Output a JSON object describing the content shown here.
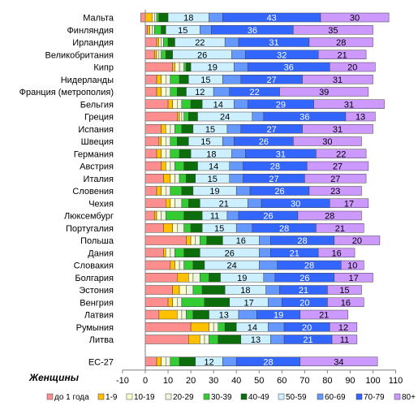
{
  "chart_data": {
    "type": "bar",
    "stacked": true,
    "orientation": "horizontal",
    "title": "",
    "xlabel": "Женщины",
    "ylabel": "",
    "xlim": [
      -10,
      110
    ],
    "xticks": [
      -10,
      0,
      10,
      20,
      30,
      40,
      50,
      60,
      70,
      80,
      90,
      100,
      110
    ],
    "grid": false,
    "legend_position": "bottom",
    "series_names": [
      "до 1 года",
      "1-9",
      "10-19",
      "20-29",
      "30-39",
      "40-49",
      "50-59",
      "60-69",
      "70-79",
      "80+"
    ],
    "colors": [
      "#ff8f8f",
      "#ffc000",
      "#ffffcc",
      "#ebf5e0",
      "#33cc33",
      "#0b6e0b",
      "#ccf0ff",
      "#6699ff",
      "#3366ff",
      "#cc99ff"
    ],
    "rows": [
      {
        "label": "Мальта",
        "values": [
          -2,
          3,
          1,
          1,
          1,
          4,
          18,
          6,
          43,
          30
        ],
        "labels": [
          "",
          "",
          "",
          "",
          "",
          "",
          "18",
          "",
          "43",
          "30"
        ]
      },
      {
        "label": "Финляндия",
        "values": [
          1,
          1,
          1,
          1,
          3,
          2,
          15,
          5,
          36,
          35
        ],
        "labels": [
          "",
          "",
          "",
          "",
          "",
          "",
          "15",
          "",
          "36",
          "35"
        ]
      },
      {
        "label": "Ирландия",
        "values": [
          5,
          1,
          1,
          1,
          2,
          3,
          22,
          6,
          31,
          28
        ],
        "labels": [
          "",
          "",
          "",
          "",
          "",
          "",
          "22",
          "",
          "31",
          "28"
        ]
      },
      {
        "label": "Великобритания",
        "values": [
          4,
          1,
          1,
          1,
          2,
          3,
          26,
          6,
          32,
          21
        ],
        "labels": [
          "",
          "",
          "",
          "",
          "",
          "",
          "26",
          "",
          "32",
          "21"
        ]
      },
      {
        "label": "Кипр",
        "values": [
          12,
          1,
          2,
          2,
          1,
          2,
          19,
          6,
          36,
          20
        ],
        "labels": [
          "",
          "",
          "",
          "",
          "",
          "",
          "19",
          "",
          "36",
          "20"
        ]
      },
      {
        "label": "Нидерланды",
        "values": [
          5,
          2,
          2,
          2,
          4,
          4,
          15,
          8,
          27,
          31
        ],
        "labels": [
          "",
          "",
          "",
          "",
          "",
          "",
          "15",
          "",
          "27",
          "31"
        ]
      },
      {
        "label": "Франция (метрополия)",
        "values": [
          5,
          2,
          2,
          2,
          3,
          4,
          12,
          7,
          22,
          39
        ],
        "labels": [
          "",
          "",
          "",
          "",
          "",
          "",
          "12",
          "",
          "22",
          "39"
        ]
      },
      {
        "label": "Бельгия",
        "values": [
          10,
          2,
          2,
          2,
          4,
          5,
          14,
          6,
          29,
          31
        ],
        "labels": [
          "",
          "",
          "",
          "",
          "",
          "",
          "14",
          "",
          "29",
          "31"
        ]
      },
      {
        "label": "Греция",
        "values": [
          14,
          1,
          1,
          1,
          2,
          4,
          24,
          5,
          36,
          13
        ],
        "labels": [
          "",
          "",
          "",
          "",
          "",
          "",
          "24",
          "",
          "36",
          "13"
        ]
      },
      {
        "label": "Испания",
        "values": [
          7,
          2,
          2,
          2,
          3,
          5,
          15,
          6,
          27,
          31
        ],
        "labels": [
          "",
          "",
          "",
          "",
          "",
          "",
          "15",
          "",
          "27",
          "31"
        ]
      },
      {
        "label": "Швеция",
        "values": [
          6,
          1,
          2,
          2,
          3,
          5,
          15,
          5,
          26,
          30
        ],
        "labels": [
          "",
          "",
          "",
          "",
          "",
          "",
          "15",
          "",
          "26",
          "30"
        ]
      },
      {
        "label": "Германия",
        "values": [
          5,
          2,
          2,
          2,
          4,
          5,
          18,
          6,
          31,
          22
        ],
        "labels": [
          "",
          "",
          "",
          "",
          "",
          "",
          "18",
          "",
          "31",
          "22"
        ]
      },
      {
        "label": "Австрия",
        "values": [
          7,
          2,
          2,
          2,
          4,
          6,
          14,
          6,
          28,
          27
        ],
        "labels": [
          "",
          "",
          "",
          "",
          "",
          "",
          "14",
          "",
          "28",
          "27"
        ]
      },
      {
        "label": "Италия",
        "values": [
          8,
          3,
          2,
          2,
          3,
          4,
          15,
          6,
          27,
          27
        ],
        "labels": [
          "",
          "",
          "",
          "",
          "",
          "",
          "15",
          "",
          "27",
          "27"
        ]
      },
      {
        "label": "Словения",
        "values": [
          5,
          2,
          2,
          2,
          5,
          5,
          19,
          6,
          26,
          23
        ],
        "labels": [
          "",
          "",
          "",
          "",
          "",
          "",
          "19",
          "",
          "26",
          "23"
        ]
      },
      {
        "label": "Чехия",
        "values": [
          9,
          2,
          2,
          3,
          3,
          5,
          21,
          6,
          30,
          17
        ],
        "labels": [
          "",
          "",
          "",
          "",
          "",
          "",
          "21",
          "",
          "30",
          "17"
        ]
      },
      {
        "label": "Люксембург",
        "values": [
          4,
          1,
          2,
          2,
          8,
          8,
          11,
          5,
          26,
          28
        ],
        "labels": [
          "",
          "",
          "",
          "",
          "",
          "",
          "11",
          "",
          "26",
          "28"
        ]
      },
      {
        "label": "Португалия",
        "values": [
          8,
          4,
          2,
          3,
          3,
          5,
          15,
          7,
          28,
          21
        ],
        "labels": [
          "",
          "",
          "",
          "",
          "",
          "",
          "15",
          "",
          "28",
          "21"
        ]
      },
      {
        "label": "Польша",
        "values": [
          18,
          2,
          2,
          2,
          3,
          7,
          16,
          5,
          28,
          20
        ],
        "labels": [
          "",
          "",
          "",
          "",
          "",
          "",
          "16",
          "",
          "28",
          "20"
        ]
      },
      {
        "label": "Дания",
        "values": [
          8,
          1,
          2,
          2,
          4,
          7,
          26,
          5,
          21,
          16
        ],
        "labels": [
          "",
          "",
          "",
          "",
          "",
          "",
          "26",
          "",
          "21",
          "16"
        ]
      },
      {
        "label": "Словакия",
        "values": [
          11,
          2,
          2,
          2,
          4,
          5,
          24,
          8,
          28,
          10
        ],
        "labels": [
          "",
          "",
          "",
          "",
          "",
          "",
          "24",
          "",
          "28",
          "10"
        ]
      },
      {
        "label": "Болгария",
        "values": [
          14,
          5,
          2,
          3,
          4,
          5,
          19,
          5,
          26,
          17
        ],
        "labels": [
          "",
          "",
          "",
          "",
          "",
          "",
          "19",
          "",
          "26",
          "17"
        ]
      },
      {
        "label": "Эстония",
        "values": [
          12,
          3,
          3,
          3,
          4,
          10,
          18,
          6,
          21,
          15
        ],
        "labels": [
          "",
          "",
          "",
          "",
          "",
          "",
          "18",
          "",
          "21",
          "15"
        ]
      },
      {
        "label": "Венгрия",
        "values": [
          10,
          2,
          2,
          2,
          10,
          11,
          17,
          6,
          20,
          16
        ],
        "labels": [
          "",
          "",
          "",
          "",
          "",
          "",
          "17",
          "",
          "20",
          "16"
        ]
      },
      {
        "label": "Латвия",
        "values": [
          6,
          8,
          2,
          2,
          3,
          7,
          13,
          8,
          19,
          21
        ],
        "labels": [
          "",
          "",
          "",
          "",
          "",
          "",
          "13",
          "",
          "19",
          "21"
        ]
      },
      {
        "label": "Румыния",
        "values": [
          20,
          8,
          2,
          2,
          3,
          5,
          14,
          7,
          20,
          12
        ],
        "labels": [
          "",
          "",
          "",
          "",
          "",
          "",
          "14",
          "",
          "20",
          "12"
        ]
      },
      {
        "label": "Литва",
        "values": [
          19,
          5,
          2,
          2,
          4,
          10,
          13,
          6,
          21,
          11
        ],
        "labels": [
          "",
          "",
          "",
          "",
          "",
          "",
          "13",
          "",
          "21",
          "11"
        ]
      },
      {
        "label": "ЕС-27",
        "values": [
          5,
          2,
          2,
          2,
          4,
          7,
          12,
          6,
          28,
          34
        ],
        "labels": [
          "",
          "",
          "",
          "",
          "",
          "",
          "12",
          "",
          "28",
          "34"
        ],
        "gap_before": true
      }
    ]
  }
}
